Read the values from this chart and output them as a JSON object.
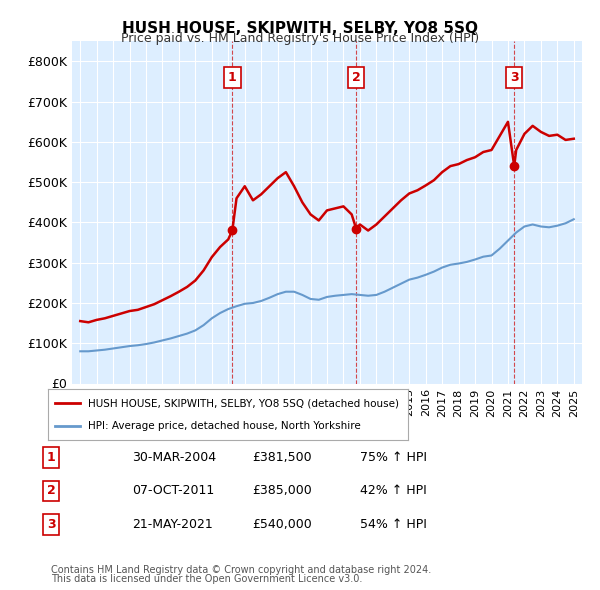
{
  "title": "HUSH HOUSE, SKIPWITH, SELBY, YO8 5SQ",
  "subtitle": "Price paid vs. HM Land Registry's House Price Index (HPI)",
  "ylabel": "",
  "ylim": [
    0,
    850000
  ],
  "yticks": [
    0,
    100000,
    200000,
    300000,
    400000,
    500000,
    600000,
    700000,
    800000
  ],
  "ytick_labels": [
    "£0",
    "£100K",
    "£200K",
    "£300K",
    "£400K",
    "£500K",
    "£600K",
    "£700K",
    "£800K"
  ],
  "legend_line1": "HUSH HOUSE, SKIPWITH, SELBY, YO8 5SQ (detached house)",
  "legend_line2": "HPI: Average price, detached house, North Yorkshire",
  "sale_points": [
    {
      "label": "1",
      "date_str": "30-MAR-2004",
      "price": 381500,
      "pct": "75%",
      "x": 2004.25
    },
    {
      "label": "2",
      "date_str": "07-OCT-2011",
      "price": 385000,
      "pct": "42%",
      "x": 2011.77
    },
    {
      "label": "3",
      "date_str": "21-MAY-2021",
      "price": 540000,
      "pct": "54%",
      "x": 2021.38
    }
  ],
  "footer1": "Contains HM Land Registry data © Crown copyright and database right 2024.",
  "footer2": "This data is licensed under the Open Government Licence v3.0.",
  "hpi_color": "#6699cc",
  "property_color": "#cc0000",
  "background_color": "#ddeeff",
  "plot_bg_color": "#ddeeff"
}
